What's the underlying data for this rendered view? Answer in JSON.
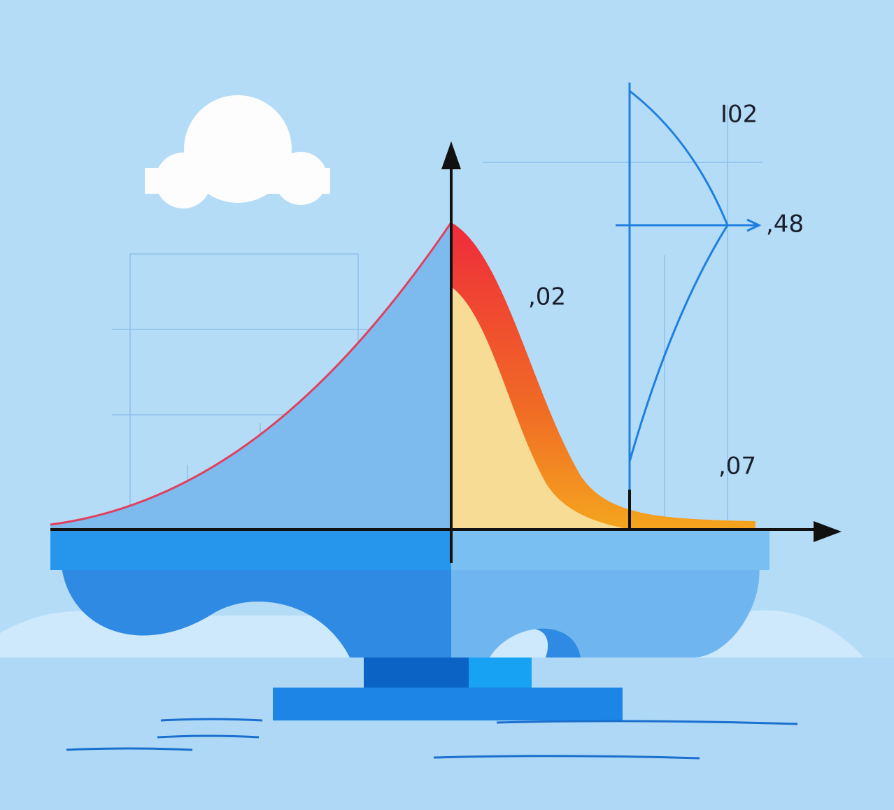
{
  "labels": {
    "bow_top": "I02",
    "bow_middle": ",48",
    "curve_peak": ",02",
    "bow_bottom": ",07"
  }
}
